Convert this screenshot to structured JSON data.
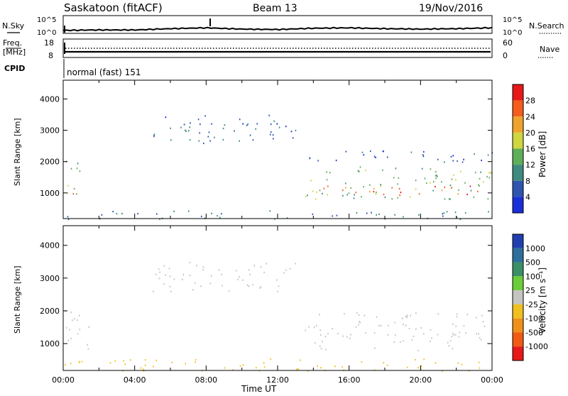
{
  "header": {
    "station": "Saskatoon (fitACF)",
    "beam": "Beam 13",
    "date": "19/Nov/2016"
  },
  "noise_panel": {
    "left_label": "N.Sky",
    "right_label": "N.Search",
    "left_ticks": [
      "10^5",
      "10^0"
    ],
    "right_ticks": [
      "10^5",
      "10^0"
    ]
  },
  "freq_panel": {
    "left_label_1": "Freq.",
    "left_label_2": "[MHz]",
    "right_label": "Nave",
    "left_ticks": [
      "18",
      "8"
    ],
    "right_ticks": [
      "60",
      "0"
    ]
  },
  "cpid": {
    "label": "CPID",
    "text": "normal (fast) 151"
  },
  "axes": {
    "ylabel": "Slant Range [km]",
    "xlabel": "Time UT",
    "y_ticks": [
      "1000",
      "2000",
      "3000",
      "4000"
    ],
    "x_ticks": [
      "00:00",
      "04:00",
      "08:00",
      "12:00",
      "16:00",
      "20:00",
      "00:00"
    ]
  },
  "colorbars": {
    "power": {
      "label": "Power [dB]",
      "ticks": [
        "4",
        "8",
        "12",
        "16",
        "20",
        "24",
        "28"
      ],
      "colors": [
        "#1a2ed8",
        "#2d55b0",
        "#3e8a7e",
        "#5fae5a",
        "#cfd640",
        "#f0a32c",
        "#f45d1d",
        "#e81818"
      ]
    },
    "velocity": {
      "label": "Velocity [m s⁻¹]",
      "ticks": [
        "1000",
        "500",
        "100",
        "25",
        "-25",
        "-100",
        "-500",
        "-1000"
      ],
      "colors": [
        "#1f3fb0",
        "#2e6e9c",
        "#3a8f68",
        "#6ccc3a",
        "#c4c4c0",
        "#f0c020",
        "#f0901a",
        "#f05a14",
        "#e81818"
      ]
    }
  },
  "chart_data": [
    {
      "type": "line",
      "title": "Saskatoon (fitACF)",
      "x_unit": "hours UT",
      "xlim": [
        0,
        24
      ],
      "series": [
        {
          "name": "N.Sky",
          "x": [
            0,
            2,
            4,
            6,
            8,
            10,
            12,
            14,
            16,
            18,
            20,
            22,
            24
          ],
          "y": [
            1.2,
            1.3,
            1.3,
            1.6,
            1.8,
            1.5,
            1.4,
            1.7,
            1.8,
            1.6,
            1.5,
            1.6,
            1.8
          ]
        }
      ]
    },
    {
      "type": "line",
      "xlim": [
        0,
        24
      ],
      "series": [
        {
          "name": "Freq.",
          "x": [
            0,
            24
          ],
          "y": [
            10.5,
            10.5
          ]
        },
        {
          "name": "Nave",
          "x": [
            0,
            24
          ],
          "y": [
            35,
            35
          ]
        }
      ]
    },
    {
      "type": "heatmap",
      "quantity": "Power",
      "units": "dB",
      "xlabel": "Time UT",
      "ylabel": "Slant Range [km]",
      "xlim": [
        0,
        24
      ],
      "ylim": [
        180,
        4600
      ],
      "clim": [
        0,
        32
      ],
      "regions": [
        {
          "t0": 0.0,
          "t1": 0.9,
          "r0": 700,
          "r1": 2200,
          "value": 14
        },
        {
          "t0": 0.1,
          "t1": 0.6,
          "r0": 850,
          "r1": 1200,
          "value": 25
        },
        {
          "t0": 5.0,
          "t1": 13.2,
          "r0": 2600,
          "r1": 3500,
          "value": 7
        },
        {
          "t0": 13.5,
          "t1": 24.0,
          "r0": 800,
          "r1": 1900,
          "value": 14
        },
        {
          "t0": 14.5,
          "t1": 23.5,
          "r0": 900,
          "r1": 1250,
          "value": 26
        },
        {
          "t0": 13.5,
          "t1": 24.0,
          "r0": 2000,
          "r1": 2400,
          "value": 6
        },
        {
          "t0": 0.0,
          "t1": 24.0,
          "r0": 180,
          "r1": 450,
          "value": 8
        }
      ]
    },
    {
      "type": "heatmap",
      "quantity": "Velocity",
      "units": "m s^-1",
      "xlabel": "Time UT",
      "ylabel": "Slant Range [km]",
      "xlim": [
        0,
        24
      ],
      "ylim": [
        180,
        4600
      ],
      "clim": [
        -1000,
        1000
      ],
      "regions": [
        {
          "t0": 0.0,
          "t1": 1.5,
          "r0": 750,
          "r1": 2200,
          "value": 5
        },
        {
          "t0": 5.0,
          "t1": 13.2,
          "r0": 2600,
          "r1": 3500,
          "value": 5
        },
        {
          "t0": 13.5,
          "t1": 24.0,
          "r0": 800,
          "r1": 2000,
          "value": -5
        },
        {
          "t0": 0.0,
          "t1": 24.0,
          "r0": 180,
          "r1": 550,
          "value": -60
        }
      ]
    }
  ]
}
